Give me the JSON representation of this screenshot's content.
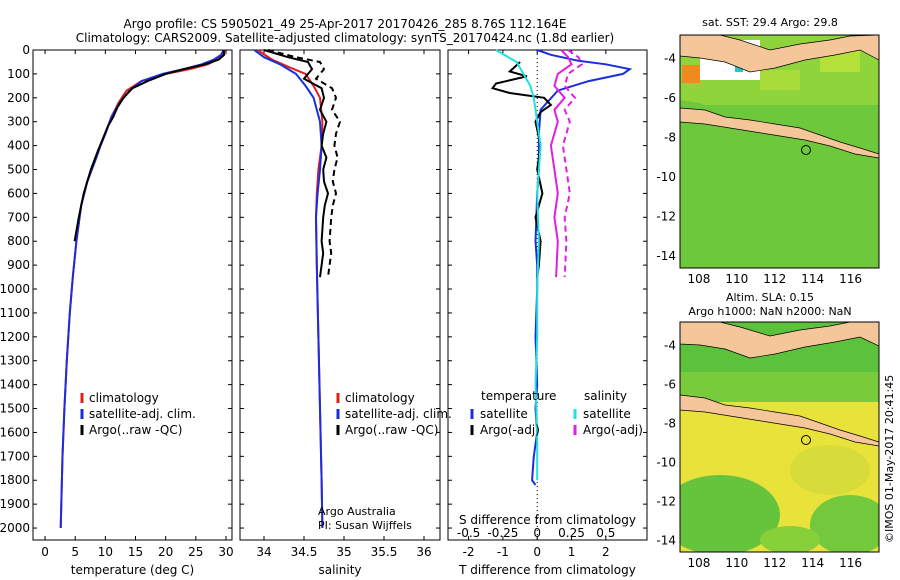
{
  "header": {
    "line1": "Argo profile: CS 5905021_49 25-Apr-2017 20170426_285 8.76S 112.164E",
    "line2": "Climatology: CARS2009. Satellite-adjusted climatology: synTS_20170424.nc (1.8d earlier)"
  },
  "side_label": "©IMOS 01-May-2017 20:41:45",
  "colors": {
    "climatology": "#e0201a",
    "satellite": "#1a2ee0",
    "argo": "#000000",
    "sal_sat": "#20e0e0",
    "sal_argo": "#e020e0"
  },
  "chart_data": [
    {
      "type": "line",
      "xlabel": "temperature (deg C)",
      "ylim": [
        0,
        2050
      ],
      "xlim": [
        -2,
        31
      ],
      "xticks": [
        0,
        5,
        10,
        15,
        20,
        25,
        30
      ],
      "yticks": [
        0,
        100,
        200,
        300,
        400,
        500,
        600,
        700,
        800,
        900,
        1000,
        1100,
        1200,
        1300,
        1400,
        1500,
        1600,
        1700,
        1800,
        1900,
        2000
      ],
      "legend": [
        "climatology",
        "satellite-adj. clim.",
        "Argo(..raw -QC)"
      ],
      "series": [
        {
          "name": "climatology",
          "x": [
            29.8,
            29.5,
            28.5,
            27,
            24,
            20,
            16,
            13.5,
            12.2,
            11,
            10,
            9.2,
            8.5,
            7,
            6,
            5.2,
            4.6,
            4.1,
            3.6,
            3.2,
            2.9,
            2.6
          ],
          "y": [
            0,
            20,
            40,
            60,
            80,
            100,
            130,
            170,
            220,
            280,
            350,
            400,
            450,
            550,
            650,
            800,
            950,
            1100,
            1300,
            1500,
            1700,
            2000
          ]
        },
        {
          "name": "satellite-adj. clim.",
          "x": [
            29.6,
            29.2,
            28,
            26,
            23,
            19.5,
            16,
            14,
            12.4,
            11,
            10,
            9.2,
            8.5,
            7,
            6,
            5.2,
            4.6,
            4.1,
            3.6,
            3.2,
            2.9,
            2.6
          ],
          "y": [
            0,
            20,
            40,
            60,
            80,
            100,
            130,
            170,
            220,
            280,
            350,
            400,
            450,
            550,
            650,
            800,
            950,
            1100,
            1300,
            1500,
            1700,
            2000
          ]
        },
        {
          "name": "Argo(..raw -QC)",
          "x": [
            29.6,
            29.7,
            28.8,
            26.5,
            23,
            20,
            17,
            14.5,
            13,
            12,
            11.3,
            10.4,
            9.6,
            8.8,
            7.6,
            6.4,
            5.6,
            4.9
          ],
          "y": [
            0,
            20,
            40,
            60,
            80,
            100,
            130,
            160,
            200,
            240,
            280,
            320,
            370,
            420,
            500,
            600,
            700,
            800
          ]
        }
      ]
    },
    {
      "type": "line",
      "xlabel": "salinity",
      "ylim": [
        0,
        2050
      ],
      "xlim": [
        33.7,
        36.2
      ],
      "xticks": [
        34,
        34.5,
        35,
        35.5,
        36
      ],
      "legend": [
        "climatology",
        "satellite-adj. clim.",
        "Argo(..raw -QC)"
      ],
      "annotation": [
        "Argo Australia",
        "PI: Susan Wijffels"
      ],
      "series": [
        {
          "name": "climatology",
          "x": [
            33.92,
            34.1,
            34.3,
            34.52,
            34.62,
            34.7,
            34.73,
            34.72,
            34.68,
            34.66,
            34.65,
            34.66,
            34.68,
            34.7,
            34.72,
            34.73
          ],
          "y": [
            0,
            40,
            70,
            100,
            150,
            200,
            300,
            400,
            500,
            600,
            700,
            900,
            1200,
            1500,
            1800,
            2000
          ]
        },
        {
          "name": "satellite-adj. clim.",
          "x": [
            33.88,
            34.0,
            34.2,
            34.4,
            34.52,
            34.62,
            34.7,
            34.72,
            34.7,
            34.67,
            34.65,
            34.66,
            34.68,
            34.7,
            34.72,
            34.73
          ],
          "y": [
            0,
            30,
            60,
            100,
            150,
            200,
            300,
            400,
            500,
            600,
            700,
            900,
            1200,
            1500,
            1800,
            2000
          ]
        },
        {
          "name": "Argo(..raw -QC)",
          "x": [
            34.0,
            34.3,
            34.55,
            34.6,
            34.5,
            34.72,
            34.75,
            34.7,
            34.78,
            34.74,
            34.72,
            34.78,
            34.74,
            34.75,
            34.8,
            34.76,
            34.74,
            34.72,
            34.74,
            34.72,
            34.7
          ],
          "y": [
            0,
            30,
            50,
            80,
            120,
            160,
            200,
            250,
            300,
            350,
            400,
            450,
            500,
            550,
            600,
            650,
            700,
            800,
            850,
            900,
            950
          ]
        },
        {
          "name": "Argo (adj)",
          "x": [
            34.05,
            34.4,
            34.7,
            34.75,
            34.65,
            34.85,
            34.9,
            34.85,
            34.95,
            34.9,
            34.88,
            34.92,
            34.88,
            34.86,
            34.9,
            34.86,
            34.84,
            34.82,
            34.84,
            34.82,
            34.8
          ],
          "y": [
            0,
            30,
            50,
            80,
            120,
            160,
            200,
            250,
            300,
            350,
            400,
            450,
            500,
            550,
            600,
            650,
            700,
            800,
            850,
            900,
            950
          ]
        }
      ]
    },
    {
      "type": "line",
      "xlabel": "T difference from climatology",
      "xlabel2": "S difference from climatology",
      "ylim": [
        0,
        2050
      ],
      "xlim": [
        -2.6,
        3.2
      ],
      "xticks": [
        -2,
        -1,
        0,
        1,
        2
      ],
      "xticks2": [
        "-0.5",
        "-0.25",
        "0",
        "0.25",
        "0.5"
      ],
      "legend_temperature": "temperature",
      "legend_salinity": "salinity",
      "legend": [
        "satellite",
        "Argo(-adj)",
        "satellite",
        "Argo(-adj)"
      ],
      "series": [
        {
          "name": "T satellite",
          "x": [
            0,
            0.4,
            1.2,
            2.0,
            2.7,
            2.5,
            1.5,
            0.6,
            0.1,
            0.05,
            0.05,
            0.0,
            -0.05,
            0.0,
            0.0,
            -0.05,
            0.0,
            -0.05,
            0.0,
            -0.1,
            -0.15,
            -0.05
          ],
          "y": [
            0,
            20,
            45,
            60,
            80,
            100,
            130,
            170,
            250,
            350,
            500,
            600,
            800,
            900,
            1000,
            1200,
            1400,
            1500,
            1600,
            1700,
            1800,
            1820
          ]
        },
        {
          "name": "T Argo(-adj)",
          "x": [
            -0.5,
            -0.8,
            -0.3,
            -1.2,
            -1.3,
            -0.8,
            0.2,
            0.4,
            0.1,
            -0.05,
            0.1,
            0.0,
            0.15,
            -0.05,
            0.1,
            0.05,
            0.0
          ],
          "y": [
            50,
            90,
            110,
            140,
            160,
            180,
            200,
            230,
            260,
            300,
            400,
            500,
            600,
            700,
            800,
            900,
            950
          ]
        },
        {
          "name": "S satellite",
          "x": [
            -1.2,
            -0.6,
            -0.4,
            -0.2,
            -0.1,
            0.0,
            0.1,
            0.0,
            0.05,
            0.0,
            0.0,
            -0.05,
            0.0,
            0.0
          ],
          "y": [
            0,
            50,
            100,
            150,
            200,
            300,
            400,
            600,
            800,
            1000,
            1200,
            1400,
            1600,
            1800
          ]
        },
        {
          "name": "S Argo(-adj) raw",
          "x": [
            0.7,
            0.9,
            1.0,
            0.6,
            0.5,
            0.8,
            0.5,
            0.6,
            0.4,
            0.5,
            0.6,
            0.5,
            0.6,
            0.55
          ],
          "y": [
            0,
            30,
            60,
            100,
            150,
            200,
            250,
            300,
            400,
            500,
            600,
            700,
            800,
            950
          ]
        },
        {
          "name": "S Argo(-adj)",
          "x": [
            0.9,
            1.2,
            1.3,
            0.9,
            0.8,
            1.1,
            0.8,
            0.95,
            0.75,
            0.85,
            0.95,
            0.8,
            0.85,
            0.8
          ],
          "y": [
            0,
            30,
            60,
            100,
            150,
            200,
            250,
            300,
            400,
            500,
            600,
            700,
            800,
            950
          ]
        }
      ]
    },
    {
      "type": "heatmap",
      "title": "sat. SST: 29.4 Argo: 29.8",
      "xlim": [
        107,
        117.5
      ],
      "ylim": [
        -14.6,
        -2.8
      ],
      "xticks": [
        108,
        110,
        112,
        114,
        116
      ],
      "yticks": [
        -4,
        -6,
        -8,
        -10,
        -12,
        -14
      ],
      "marker": [
        112.164,
        -8.76
      ]
    },
    {
      "type": "heatmap",
      "title": "Altim. SLA: 0.15",
      "subtitle": "Argo h1000: NaN h2000: NaN",
      "xlim": [
        107,
        117.5
      ],
      "ylim": [
        -14.6,
        -2.8
      ],
      "xticks": [
        108,
        110,
        112,
        114,
        116
      ],
      "yticks": [
        -4,
        -6,
        -8,
        -10,
        -12,
        -14
      ],
      "marker": [
        112.164,
        -8.76
      ]
    }
  ]
}
